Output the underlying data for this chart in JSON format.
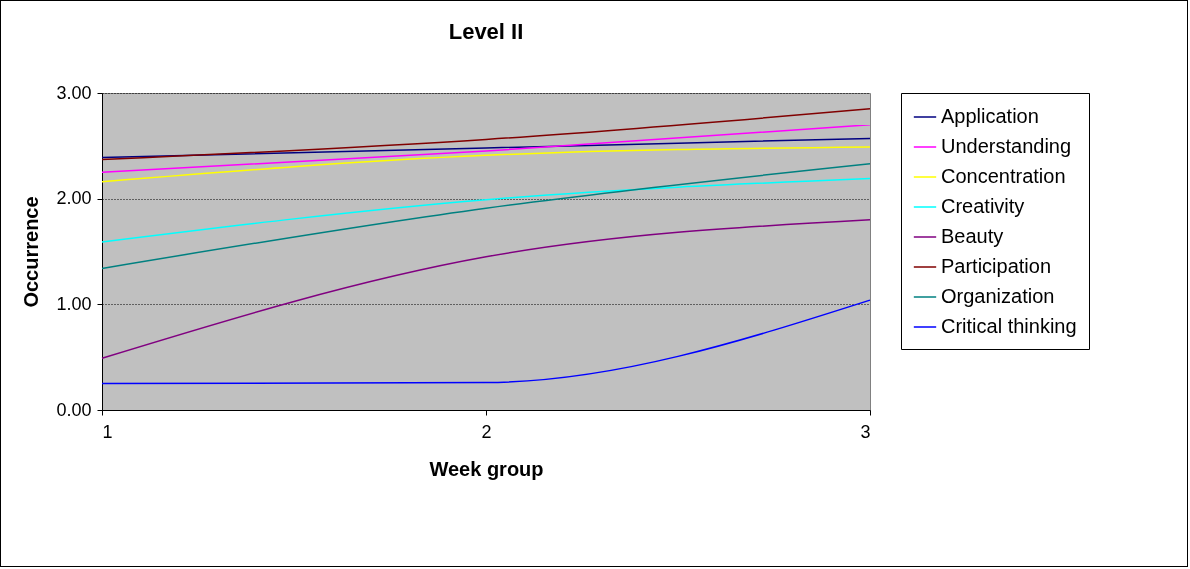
{
  "chart_data": {
    "type": "line",
    "title": "Level II",
    "xlabel": "Week group",
    "ylabel": "Occurrence",
    "x": [
      1,
      2,
      3
    ],
    "series": [
      {
        "name": "Application",
        "color": "#000080",
        "values": [
          2.39,
          2.48,
          2.57
        ]
      },
      {
        "name": "Understanding",
        "color": "#ff00ff",
        "values": [
          2.25,
          2.45,
          2.7
        ]
      },
      {
        "name": "Concentration",
        "color": "#ffff00",
        "values": [
          2.16,
          2.41,
          2.49
        ]
      },
      {
        "name": "Creativity",
        "color": "#00ffff",
        "values": [
          1.59,
          1.99,
          2.19
        ]
      },
      {
        "name": "Beauty",
        "color": "#800080",
        "values": [
          0.49,
          1.45,
          1.8
        ]
      },
      {
        "name": "Participation",
        "color": "#800000",
        "values": [
          2.37,
          2.56,
          2.85
        ]
      },
      {
        "name": "Organization",
        "color": "#008080",
        "values": [
          1.34,
          1.91,
          2.33
        ]
      },
      {
        "name": "Critical thinking",
        "color": "#0000ff",
        "values": [
          0.25,
          0.26,
          1.04
        ]
      }
    ],
    "xlim": [
      1,
      3
    ],
    "xticks": [
      1,
      2,
      3
    ],
    "ylim": [
      0,
      3
    ],
    "yticks": [
      {
        "value": 0,
        "label": "0.00"
      },
      {
        "value": 1,
        "label": "1.00"
      },
      {
        "value": 2,
        "label": "2.00"
      },
      {
        "value": 3,
        "label": "3.00"
      }
    ],
    "grid": "y",
    "legend": "right",
    "marker": "none",
    "line_style": "solid"
  }
}
